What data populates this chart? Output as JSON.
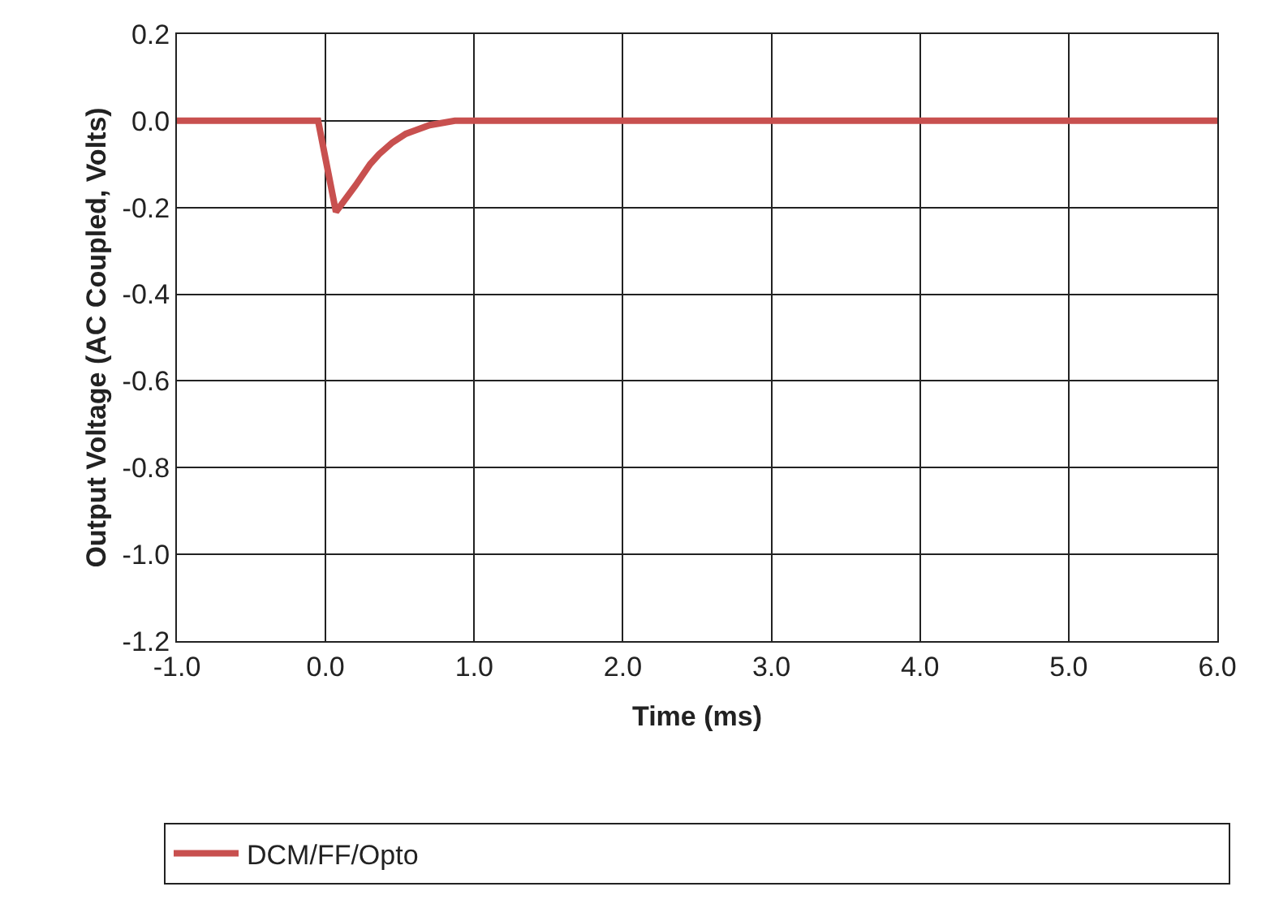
{
  "chart_data": {
    "type": "line",
    "xlabel": "Time (ms)",
    "ylabel": "Output Voltage (AC Coupled, Volts)",
    "xlim": [
      -1.0,
      6.0
    ],
    "xticks": [
      {
        "value": -1,
        "label": "-1.0"
      },
      {
        "value": 0,
        "label": "0.0"
      },
      {
        "value": 1,
        "label": "1.0"
      },
      {
        "value": 2,
        "label": "2.0"
      },
      {
        "value": 3,
        "label": "3.0"
      },
      {
        "value": 4,
        "label": "4.0"
      },
      {
        "value": 5,
        "label": "5.0"
      },
      {
        "value": 6,
        "label": "6.0"
      }
    ],
    "ylim": [
      -1.2,
      0.2
    ],
    "yticks": [
      {
        "value": -1.2,
        "label": "-1.2"
      },
      {
        "value": -1.0,
        "label": "-1.0"
      },
      {
        "value": -0.8,
        "label": "-0.8"
      },
      {
        "value": -0.6,
        "label": "-0.6"
      },
      {
        "value": -0.4,
        "label": "-0.4"
      },
      {
        "value": -0.2,
        "label": "-0.2"
      },
      {
        "value": 0,
        "label": "0.0"
      },
      {
        "value": 0.2,
        "label": "0.2"
      }
    ],
    "grid": true,
    "legend": "bottom",
    "marker": "none",
    "line_style": "solid",
    "x": [
      -1.0,
      -0.05,
      0.07,
      0.2,
      0.3,
      0.36,
      0.45,
      0.54,
      0.7,
      0.87,
      6.0
    ],
    "series": [
      {
        "name": "DCM/FF/Opto",
        "color": "#c8504f",
        "values": [
          0,
          0,
          -0.21,
          -0.15,
          -0.1,
          -0.077,
          -0.05,
          -0.03,
          -0.01,
          0,
          0
        ]
      }
    ]
  }
}
